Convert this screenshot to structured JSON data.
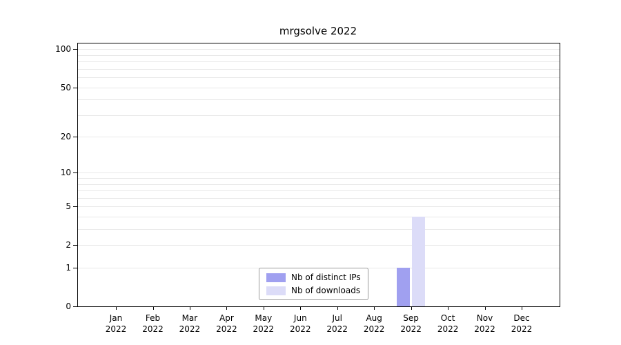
{
  "chart_data": {
    "type": "bar",
    "title": "mrgsolve 2022",
    "categories": [
      "Jan",
      "Feb",
      "Mar",
      "Apr",
      "May",
      "Jun",
      "Jul",
      "Aug",
      "Sep",
      "Oct",
      "Nov",
      "Dec"
    ],
    "year_label": "2022",
    "series": [
      {
        "name": "Nb of distinct IPs",
        "color": "#a0a0f0",
        "values": [
          0,
          0,
          0,
          0,
          0,
          0,
          0,
          0,
          1,
          0,
          0,
          0
        ]
      },
      {
        "name": "Nb of downloads",
        "color": "#dcdcf8",
        "values": [
          0,
          0,
          0,
          0,
          0,
          0,
          0,
          0,
          4,
          0,
          0,
          0
        ]
      }
    ],
    "xlabel": "",
    "ylabel": "",
    "scale": "log1p",
    "y_ticks": [
      0,
      1,
      2,
      5,
      10,
      20,
      50,
      100
    ],
    "grid_values": [
      1,
      2,
      3,
      4,
      5,
      6,
      7,
      8,
      9,
      10,
      20,
      30,
      40,
      50,
      60,
      70,
      80,
      90,
      100
    ],
    "ylim": [
      0,
      111
    ],
    "grid": "horizontal-minor",
    "legend_position": "inside-bottom-center"
  }
}
